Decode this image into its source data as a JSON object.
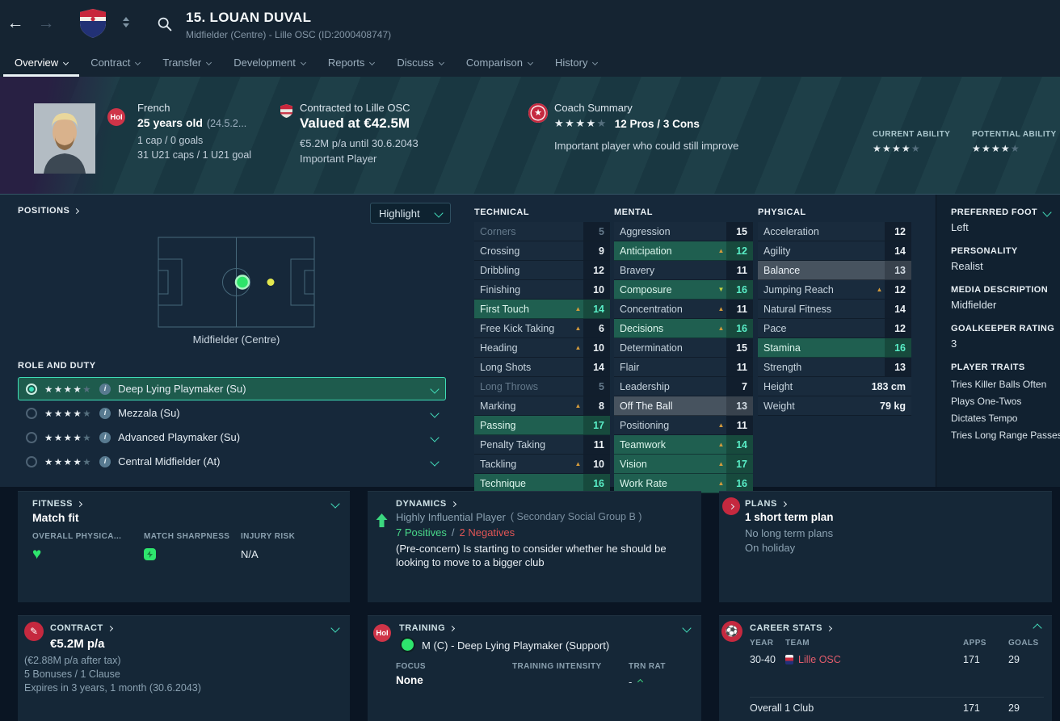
{
  "icons": {
    "star": "★",
    "heart": "♥",
    "arrow_up": "▲",
    "arrow_down": "▼",
    "back_arrow": "←",
    "forward_arrow": "→",
    "info": "i",
    "pencil": "✎",
    "soccer_ball": "⚽"
  },
  "titlebar": {
    "title": "15. LOUAN DUVAL",
    "subtitle": "Midfielder (Centre) - Lille OSC (ID:2000408747)"
  },
  "nav": {
    "tabs": [
      {
        "label": "Overview",
        "active": true
      },
      {
        "label": "Contract",
        "active": false
      },
      {
        "label": "Transfer",
        "active": false
      },
      {
        "label": "Development",
        "active": false
      },
      {
        "label": "Reports",
        "active": false
      },
      {
        "label": "Discuss",
        "active": false
      },
      {
        "label": "Comparison",
        "active": false
      },
      {
        "label": "History",
        "active": false
      }
    ]
  },
  "profile": {
    "holiday_badge": "Hol",
    "nationality": "French",
    "age": "25 years old",
    "birthdate": "(24.5.2...",
    "caps": "1 cap / 0 goals",
    "u21_caps": "31 U21 caps / 1 U21 goal",
    "contracted": "Contracted to Lille OSC",
    "value": "Valued at €42.5M",
    "wage_until": "€5.2M p/a until 30.6.2043",
    "squad_status": "Important Player",
    "coach_summary": "Coach Summary",
    "pros_cons": "12 Pros / 3 Cons",
    "coach_comment": "Important player who could still improve",
    "current_ability": "CURRENT ABILITY",
    "potential_ability": "POTENTIAL ABILITY"
  },
  "positions": {
    "header": "POSITIONS",
    "highlight": "Highlight",
    "pitch_position": "Midfielder (Centre)",
    "role_duty": "ROLE AND DUTY",
    "roles": [
      {
        "name": "Deep Lying Playmaker (Su)",
        "selected": true
      },
      {
        "name": "Mezzala (Su)",
        "selected": false
      },
      {
        "name": "Advanced Playmaker (Su)",
        "selected": false
      },
      {
        "name": "Central Midfielder (At)",
        "selected": false
      }
    ]
  },
  "attributes": {
    "technical": {
      "header": "TECHNICAL",
      "rows": [
        {
          "name": "Corners",
          "value": "5",
          "dim": true
        },
        {
          "name": "Crossing",
          "value": "9"
        },
        {
          "name": "Dribbling",
          "value": "12"
        },
        {
          "name": "Finishing",
          "value": "10"
        },
        {
          "name": "First Touch",
          "value": "14",
          "hl": "teal",
          "arrow": "up"
        },
        {
          "name": "Free Kick Taking",
          "value": "6",
          "arrow": "up"
        },
        {
          "name": "Heading",
          "value": "10",
          "arrow": "up"
        },
        {
          "name": "Long Shots",
          "value": "14"
        },
        {
          "name": "Long Throws",
          "value": "5",
          "dim": true
        },
        {
          "name": "Marking",
          "value": "8",
          "arrow": "up"
        },
        {
          "name": "Passing",
          "value": "17",
          "hl": "teal"
        },
        {
          "name": "Penalty Taking",
          "value": "11"
        },
        {
          "name": "Tackling",
          "value": "10",
          "arrow": "up"
        },
        {
          "name": "Technique",
          "value": "16",
          "hl": "teal"
        }
      ]
    },
    "mental": {
      "header": "MENTAL",
      "rows": [
        {
          "name": "Aggression",
          "value": "15"
        },
        {
          "name": "Anticipation",
          "value": "12",
          "hl": "teal",
          "arrow": "up"
        },
        {
          "name": "Bravery",
          "value": "11"
        },
        {
          "name": "Composure",
          "value": "16",
          "hl": "teal",
          "arrow": "down"
        },
        {
          "name": "Concentration",
          "value": "11",
          "arrow": "up"
        },
        {
          "name": "Decisions",
          "value": "16",
          "hl": "teal",
          "arrow": "up"
        },
        {
          "name": "Determination",
          "value": "15"
        },
        {
          "name": "Flair",
          "value": "11"
        },
        {
          "name": "Leadership",
          "value": "7"
        },
        {
          "name": "Off The Ball",
          "value": "13",
          "hl": "gray"
        },
        {
          "name": "Positioning",
          "value": "11",
          "arrow": "up"
        },
        {
          "name": "Teamwork",
          "value": "14",
          "hl": "teal",
          "arrow": "up"
        },
        {
          "name": "Vision",
          "value": "17",
          "hl": "teal",
          "arrow": "up"
        },
        {
          "name": "Work Rate",
          "value": "16",
          "hl": "teal",
          "arrow": "up"
        }
      ]
    },
    "physical": {
      "header": "PHYSICAL",
      "rows": [
        {
          "name": "Acceleration",
          "value": "12"
        },
        {
          "name": "Agility",
          "value": "14"
        },
        {
          "name": "Balance",
          "value": "13",
          "hl": "gray"
        },
        {
          "name": "Jumping Reach",
          "value": "12",
          "arrow": "up"
        },
        {
          "name": "Natural Fitness",
          "value": "14"
        },
        {
          "name": "Pace",
          "value": "12"
        },
        {
          "name": "Stamina",
          "value": "16",
          "hl": "teal"
        },
        {
          "name": "Strength",
          "value": "13"
        },
        {
          "name": "Height",
          "value": "183 cm",
          "info": true
        },
        {
          "name": "Weight",
          "value": "79 kg",
          "info": true
        }
      ]
    }
  },
  "sidebar": {
    "preferred_foot_label": "PREFERRED FOOT",
    "preferred_foot": "Left",
    "personality_label": "PERSONALITY",
    "personality": "Realist",
    "media_label": "MEDIA DESCRIPTION",
    "media_description": "Midfielder",
    "goalkeeper_label": "GOALKEEPER RATING",
    "goalkeeper_rating": "3",
    "traits_label": "PLAYER TRAITS",
    "traits": [
      "Tries Killer Balls Often",
      "Plays One-Twos",
      "Dictates Tempo",
      "Tries Long Range Passes"
    ]
  },
  "fitness": {
    "header": "FITNESS",
    "status": "Match fit",
    "columns": [
      "OVERALL PHYSICA...",
      "MATCH SHARPNESS",
      "INJURY RISK"
    ],
    "injury_risk": "N/A"
  },
  "dynamics": {
    "header": "DYNAMICS",
    "influence": "Highly Influential Player",
    "social_group": "( Secondary Social Group B )",
    "positives": "7 Positives",
    "separator": "/",
    "negatives": "2 Negatives",
    "concern": "(Pre-concern) Is starting to consider whether he should be looking to move to a bigger club"
  },
  "plans": {
    "header": "PLANS",
    "short_term": "1 short term plan",
    "long_term": "No long term plans",
    "status": "On holiday"
  },
  "contract": {
    "header": "CONTRACT",
    "wage": "€5.2M p/a",
    "after_tax": "(€2.88M p/a after tax)",
    "bonuses": "5 Bonuses / 1 Clause",
    "expires": "Expires in 3 years, 1 month (30.6.2043)"
  },
  "training": {
    "header": "TRAINING",
    "holiday_badge": "Hol",
    "assignment": "M (C) - Deep Lying Playmaker (Support)",
    "columns": [
      "FOCUS",
      "TRAINING INTENSITY",
      "TRN RAT"
    ],
    "focus": "None",
    "trn_rat": "-"
  },
  "career": {
    "header": "CAREER STATS",
    "columns": [
      "YEAR",
      "TEAM",
      "APPS",
      "GOALS"
    ],
    "rows": [
      {
        "year": "30-40",
        "team": "Lille OSC",
        "apps": "171",
        "goals": "29"
      }
    ],
    "overall": {
      "label": "Overall 1 Club",
      "apps": "171",
      "goals": "29"
    }
  }
}
